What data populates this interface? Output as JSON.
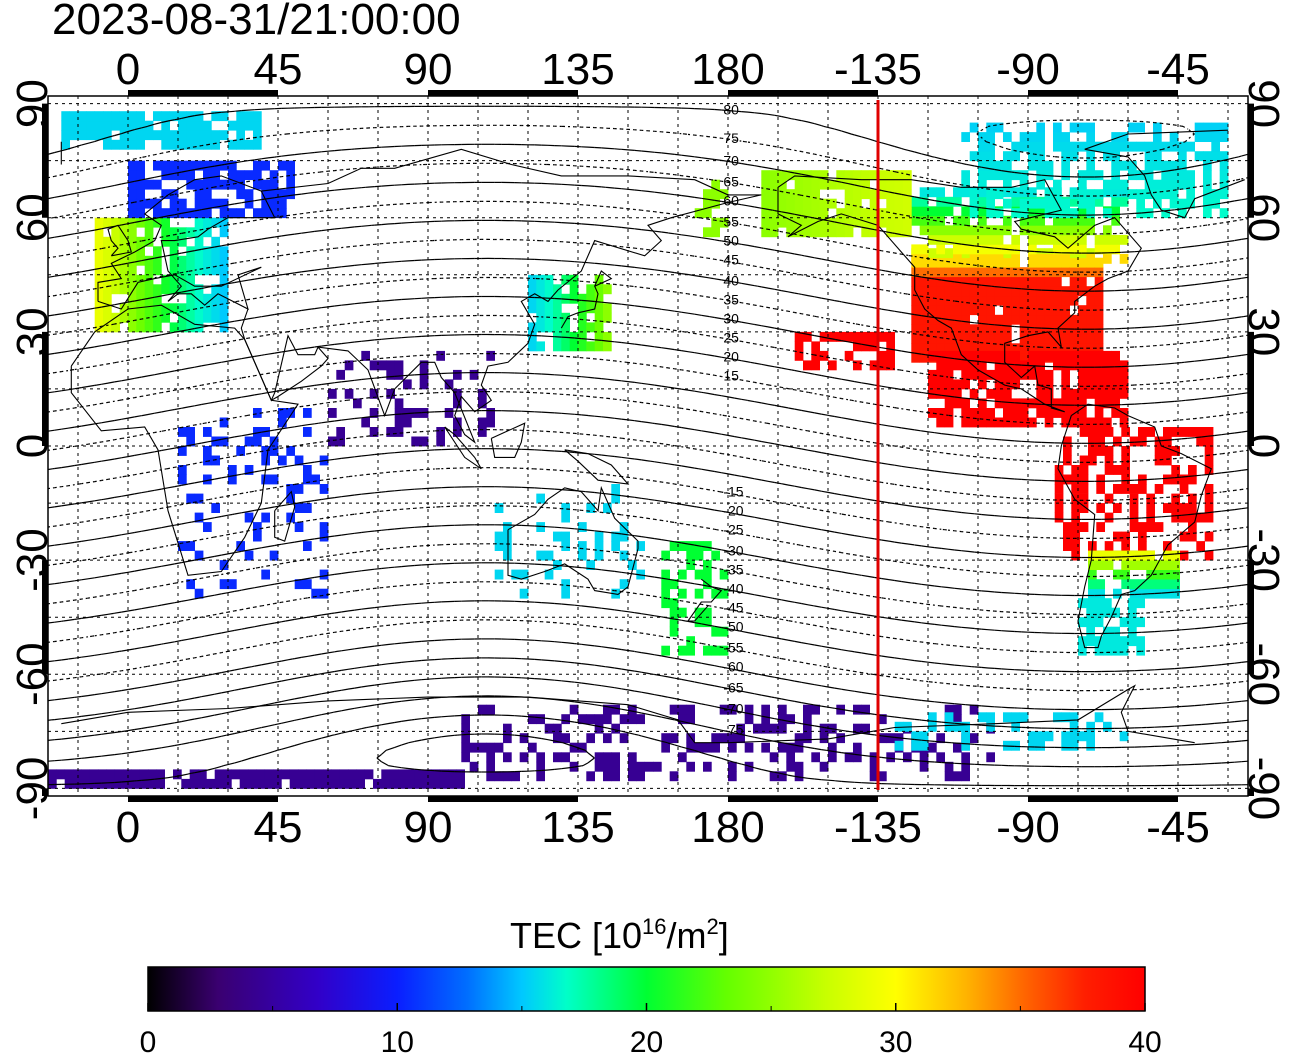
{
  "timestamp": "2023-08-31/21:00:00",
  "map": {
    "lon_ticks": [
      "0",
      "45",
      "90",
      "135",
      "180",
      "-135",
      "-90",
      "-45"
    ],
    "lon_values": [
      0,
      45,
      90,
      135,
      180,
      225,
      270,
      315
    ],
    "lat_ticks": [
      "90",
      "60",
      "30",
      "0",
      "-30",
      "-60",
      "-90"
    ],
    "lat_values": [
      90,
      60,
      30,
      0,
      -30,
      -60,
      -90
    ],
    "lon_range": [
      -24,
      336
    ],
    "lat_range": [
      -92,
      92
    ],
    "grid": true,
    "terminator_longitude": -135,
    "terminator_color": "#e00000",
    "magnetic_latitude_labels": [
      "80",
      "75",
      "70",
      "65",
      "60",
      "55",
      "50",
      "45",
      "40",
      "35",
      "30",
      "25",
      "20",
      "15",
      "-15",
      "-20",
      "-25",
      "-30",
      "-35",
      "-40",
      "-45",
      "-50",
      "-55",
      "-60",
      "-65",
      "-70",
      "-75"
    ]
  },
  "colorbar": {
    "title_main": "TEC  [10",
    "title_exp1": "16",
    "title_mid": "/m",
    "title_exp2": "2",
    "title_end": "]",
    "min": 0,
    "max": 40,
    "ticks": [
      "0",
      "10",
      "20",
      "30",
      "40"
    ],
    "tick_values": [
      0,
      10,
      20,
      30,
      40
    ],
    "colors": [
      "#000000",
      "#3a0070",
      "#3200c8",
      "#0a1eff",
      "#006eff",
      "#00c8ff",
      "#00ffc8",
      "#00ff32",
      "#64ff00",
      "#c8ff00",
      "#ffff00",
      "#ffb400",
      "#ff6400",
      "#ff1e00",
      "#ff0000"
    ]
  }
}
